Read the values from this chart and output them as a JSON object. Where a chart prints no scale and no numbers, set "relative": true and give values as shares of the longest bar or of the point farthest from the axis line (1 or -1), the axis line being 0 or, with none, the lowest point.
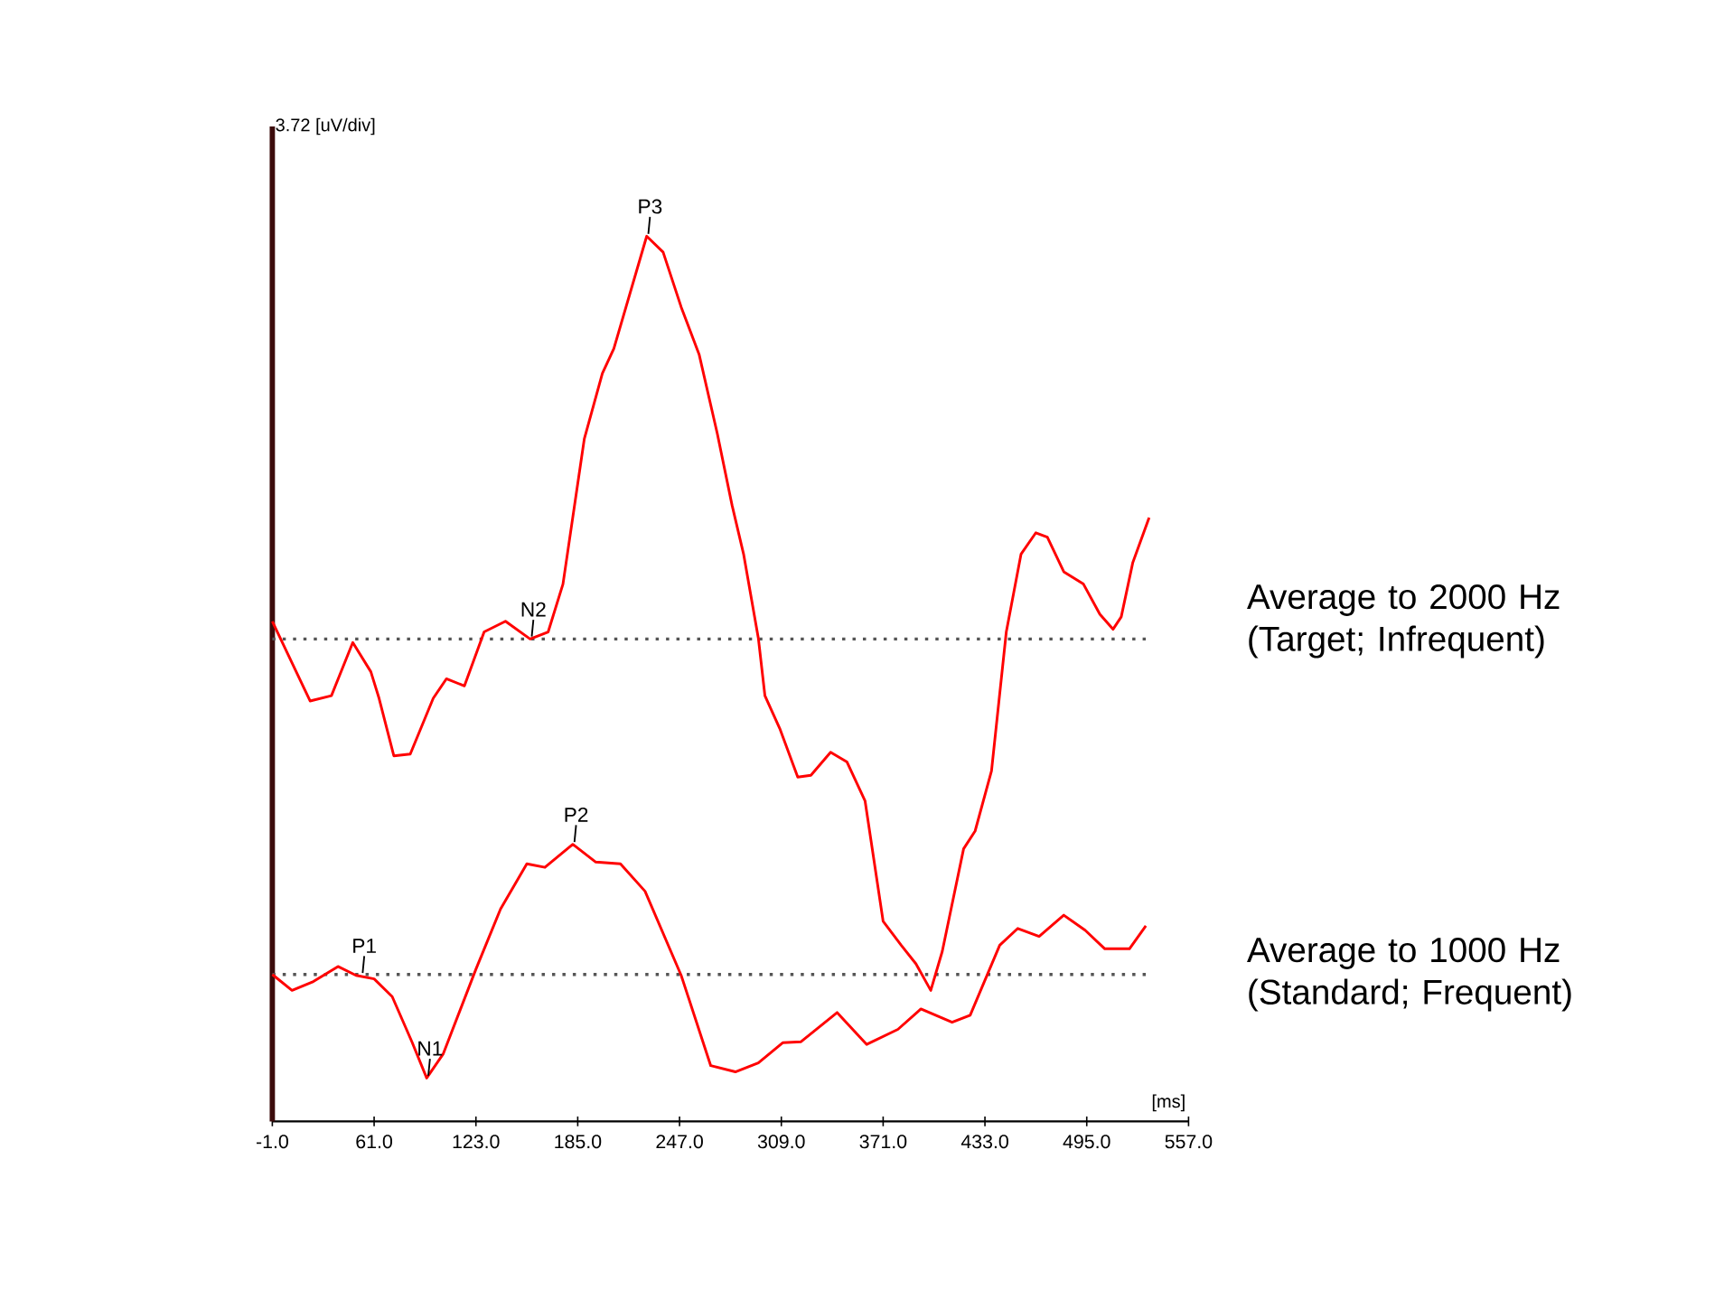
{
  "chart_data": {
    "type": "line",
    "relative": true,
    "xlabel": "[ms]",
    "xlim": [
      -1,
      557
    ],
    "xticks": [
      {
        "value": -1,
        "label": "-1.0"
      },
      {
        "value": 61,
        "label": "61.0"
      },
      {
        "value": 123,
        "label": "123.0"
      },
      {
        "value": 185,
        "label": "185.0"
      },
      {
        "value": 247,
        "label": "247.0"
      },
      {
        "value": 309,
        "label": "309.0"
      },
      {
        "value": 371,
        "label": "371.0"
      },
      {
        "value": 433,
        "label": "433.0"
      },
      {
        "value": 495,
        "label": "495.0"
      },
      {
        "value": 557,
        "label": "557.0"
      }
    ],
    "series": [
      {
        "name": "Average to 2000 Hz (Target; Infrequent)",
        "color": "#ff0000",
        "x": [
          -1,
          22,
          35,
          48,
          59,
          64,
          73,
          83,
          97,
          105,
          116,
          128,
          141,
          156,
          167,
          176,
          189,
          200,
          207,
          227,
          237,
          248,
          259,
          270,
          279,
          286,
          295,
          299,
          308,
          319,
          327,
          339,
          349,
          360,
          371,
          382,
          391,
          400,
          407,
          420,
          427,
          437,
          446,
          455,
          464,
          471,
          481,
          493,
          503,
          511,
          516,
          523,
          533
        ],
        "values": [
          0.565,
          0.475,
          0.481,
          0.541,
          0.508,
          0.478,
          0.413,
          0.415,
          0.478,
          0.5,
          0.492,
          0.553,
          0.565,
          0.545,
          0.553,
          0.607,
          0.771,
          0.845,
          0.873,
          1.0,
          0.982,
          0.92,
          0.866,
          0.777,
          0.696,
          0.641,
          0.546,
          0.481,
          0.444,
          0.389,
          0.391,
          0.417,
          0.406,
          0.362,
          0.226,
          0.199,
          0.178,
          0.148,
          0.192,
          0.308,
          0.328,
          0.396,
          0.553,
          0.641,
          0.665,
          0.66,
          0.621,
          0.607,
          0.573,
          0.556,
          0.57,
          0.631,
          0.682
        ]
      },
      {
        "name": "Average to 1000 Hz (Standard; Frequent)",
        "color": "#ff0000",
        "x": [
          -1,
          11,
          24,
          39,
          50,
          61,
          72,
          84,
          93,
          103,
          123,
          138,
          154,
          165,
          182,
          196,
          211,
          226,
          248,
          266,
          281,
          295,
          310,
          321,
          343,
          361,
          380,
          394,
          413,
          424,
          442,
          453,
          466,
          481,
          494,
          506,
          521,
          531
        ],
        "values": [
          0.166,
          0.148,
          0.158,
          0.175,
          0.165,
          0.161,
          0.141,
          0.09,
          0.049,
          0.076,
          0.172,
          0.24,
          0.291,
          0.287,
          0.313,
          0.293,
          0.291,
          0.26,
          0.165,
          0.063,
          0.056,
          0.066,
          0.089,
          0.09,
          0.123,
          0.087,
          0.104,
          0.127,
          0.112,
          0.12,
          0.199,
          0.218,
          0.209,
          0.233,
          0.216,
          0.195,
          0.195,
          0.221
        ]
      }
    ],
    "ref_lines": [
      {
        "axis": "y",
        "value": 0.545,
        "line_style": "dotted",
        "color": "#555555"
      },
      {
        "axis": "y",
        "value": 0.166,
        "line_style": "dotted",
        "color": "#555555"
      }
    ],
    "annotations": [
      {
        "text": "P3",
        "x": 227,
        "y": 1.0
      },
      {
        "text": "N2",
        "x": 156,
        "y": 0.545
      },
      {
        "text": "P2",
        "x": 182,
        "y": 0.313
      },
      {
        "text": "P1",
        "x": 53,
        "y": 0.165
      },
      {
        "text": "N1",
        "x": 93,
        "y": 0.049
      },
      "3.72 [uV/div]"
    ]
  }
}
